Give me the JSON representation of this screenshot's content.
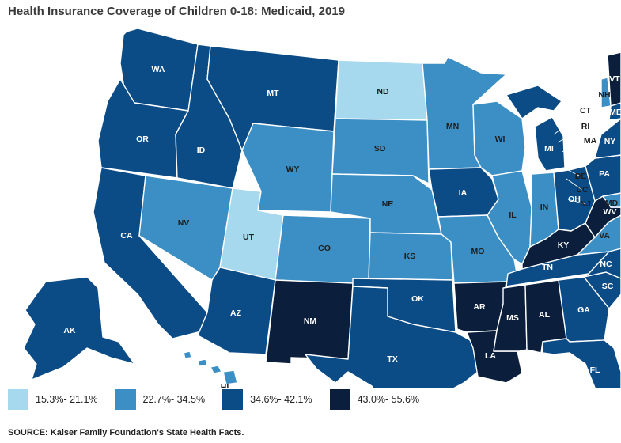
{
  "title": "Health Insurance Coverage of Children 0-18: Medicaid, 2019",
  "source": "SOURCE: Kaiser Family Foundation's State Health Facts.",
  "colors": {
    "c1": "#a6d8ee",
    "c2": "#3b8fc5",
    "c3": "#0b4b86",
    "c4": "#0b1f3c",
    "border": "#ffffff"
  },
  "legend": [
    {
      "label": "15.3%- 21.1%",
      "cls": "c1"
    },
    {
      "label": "22.7%- 34.5%",
      "cls": "c2"
    },
    {
      "label": "34.6%- 42.1%",
      "cls": "c3"
    },
    {
      "label": "43.0%- 55.6%",
      "cls": "c4"
    }
  ],
  "states": {
    "WA": {
      "label": "WA",
      "cls": "c3"
    },
    "OR": {
      "label": "OR",
      "cls": "c3"
    },
    "CA": {
      "label": "CA",
      "cls": "c3"
    },
    "ID": {
      "label": "ID",
      "cls": "c3"
    },
    "NV": {
      "label": "NV",
      "cls": "c2"
    },
    "UT": {
      "label": "UT",
      "cls": "c1"
    },
    "AZ": {
      "label": "AZ",
      "cls": "c3"
    },
    "MT": {
      "label": "MT",
      "cls": "c3"
    },
    "WY": {
      "label": "WY",
      "cls": "c2"
    },
    "CO": {
      "label": "CO",
      "cls": "c2"
    },
    "NM": {
      "label": "NM",
      "cls": "c4"
    },
    "ND": {
      "label": "ND",
      "cls": "c1"
    },
    "SD": {
      "label": "SD",
      "cls": "c2"
    },
    "NE": {
      "label": "NE",
      "cls": "c2"
    },
    "KS": {
      "label": "KS",
      "cls": "c2"
    },
    "OK": {
      "label": "OK",
      "cls": "c3"
    },
    "TX": {
      "label": "TX",
      "cls": "c3"
    },
    "MN": {
      "label": "MN",
      "cls": "c2"
    },
    "IA": {
      "label": "IA",
      "cls": "c3"
    },
    "MO": {
      "label": "MO",
      "cls": "c2"
    },
    "AR": {
      "label": "AR",
      "cls": "c4"
    },
    "LA": {
      "label": "LA",
      "cls": "c4"
    },
    "WI": {
      "label": "WI",
      "cls": "c2"
    },
    "IL": {
      "label": "IL",
      "cls": "c2"
    },
    "MI": {
      "label": "MI",
      "cls": "c3"
    },
    "IN": {
      "label": "IN",
      "cls": "c2"
    },
    "OH": {
      "label": "OH",
      "cls": "c3"
    },
    "KY": {
      "label": "KY",
      "cls": "c4"
    },
    "TN": {
      "label": "TN",
      "cls": "c3"
    },
    "MS": {
      "label": "MS",
      "cls": "c4"
    },
    "AL": {
      "label": "AL",
      "cls": "c4"
    },
    "GA": {
      "label": "GA",
      "cls": "c3"
    },
    "FL": {
      "label": "FL",
      "cls": "c3"
    },
    "SC": {
      "label": "SC",
      "cls": "c3"
    },
    "NC": {
      "label": "NC",
      "cls": "c3"
    },
    "VA": {
      "label": "VA",
      "cls": "c2"
    },
    "WV": {
      "label": "WV",
      "cls": "c4"
    },
    "MD": {
      "label": "MD",
      "cls": "c2"
    },
    "DE": {
      "label": "DE",
      "cls": "c3"
    },
    "DC": {
      "label": "DC",
      "cls": "c3"
    },
    "PA": {
      "label": "PA",
      "cls": "c3"
    },
    "NJ": {
      "label": "NJ",
      "cls": "c2"
    },
    "NY": {
      "label": "NY",
      "cls": "c3"
    },
    "CT": {
      "label": "CT",
      "cls": "c3"
    },
    "RI": {
      "label": "RI",
      "cls": "c2"
    },
    "MA": {
      "label": "MA",
      "cls": "c2"
    },
    "VT": {
      "label": "VT",
      "cls": "c4"
    },
    "NH": {
      "label": "NH",
      "cls": "c2"
    },
    "ME": {
      "label": "ME",
      "cls": "c3"
    },
    "AK": {
      "label": "AK",
      "cls": "c3"
    },
    "HI": {
      "label": "HI",
      "cls": "c2"
    }
  }
}
